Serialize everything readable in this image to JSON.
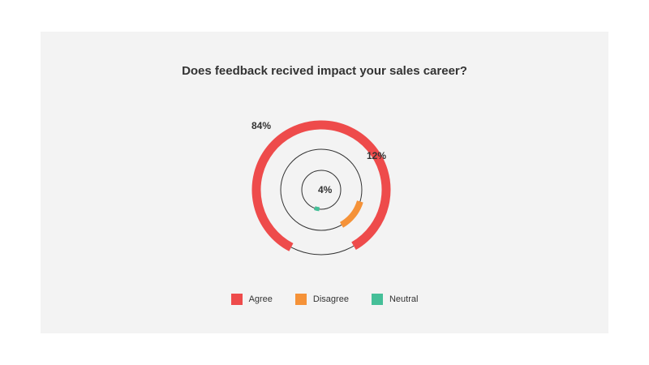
{
  "chart_data": {
    "type": "radial-bar",
    "title": "Does feedback recived impact your sales career?",
    "categories": [
      "Agree",
      "Disagree",
      "Neutral"
    ],
    "values": [
      84,
      12,
      4
    ],
    "value_labels": [
      "84%",
      "12%",
      "4%"
    ],
    "max": 100,
    "colors": [
      "#ee4b4b",
      "#f59238",
      "#45bf98"
    ],
    "legend_position": "bottom-center"
  }
}
